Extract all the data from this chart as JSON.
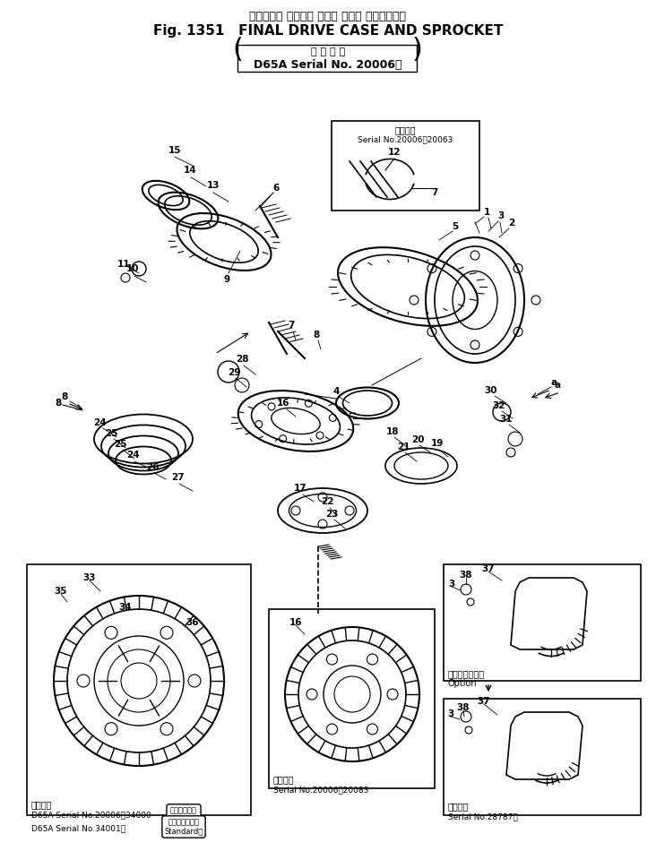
{
  "title_japanese": "ファイナル ドライブ ケース および スプロケット",
  "title_main": "Fig. 1351   FINAL DRIVE CASE AND SPROCKET",
  "subtitle_japanese": "適 用 号 機",
  "subtitle_serial": "D65A Serial No. 20006～",
  "background_color": "#ffffff",
  "line_color": "#000000",
  "fig_width": 7.32,
  "fig_height": 9.5,
  "inset1_label_jp": "適用号機",
  "inset1_label": "Serial No.20006～20063",
  "inset2_label_jp": "適用号機",
  "inset2_label": "D65A Serial No.20006～34000",
  "inset2_option_jp": "（オプション\nOption）",
  "inset2_std_jp": "D65A Serial No.34001～（スタンダード\nStandard）",
  "inset3_label_jp": "適用号機",
  "inset3_label": "Serial No.20006～20083",
  "inset4_label_jp": "適用号機",
  "inset4_label": "Serial No.28787～",
  "option_jp": "（オプション）\nOption"
}
